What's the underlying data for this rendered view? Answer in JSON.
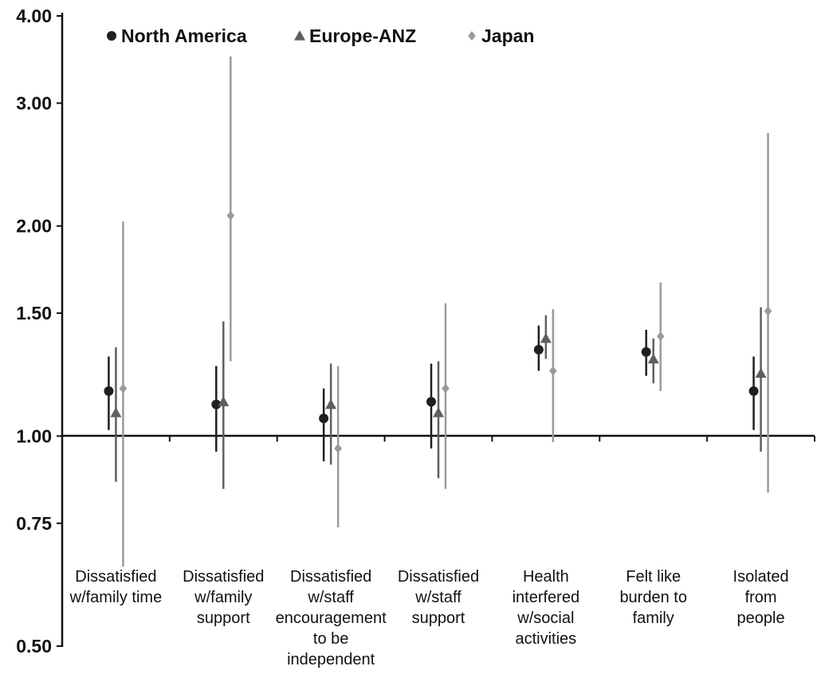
{
  "chart_data": {
    "type": "scatter",
    "subtype": "error-bar plot (log scale)",
    "y_scale": "log",
    "ylim": [
      0.5,
      4.0
    ],
    "y_ticks": [
      "0.50",
      "0.75",
      "1.00",
      "1.50",
      "2.00",
      "3.00",
      "4.00"
    ],
    "reference_line": 1.0,
    "legend_position": "top-left",
    "categories": [
      "Dissatisfied\nw/family time",
      "Dissatisfied\nw/family\nsupport",
      "Dissatisfied\nw/staff\nencouragement\nto be\nindependent",
      "Dissatisfied\nw/staff\nsupport",
      "Health\ninterfered\nw/social\nactivities",
      "Felt like\nburden to\nfamily",
      "Isolated\nfrom\npeople"
    ],
    "series": [
      {
        "name": "North America",
        "marker": "circle",
        "color": "#1f1f1f",
        "values": [
          1.16,
          1.11,
          1.06,
          1.12,
          1.33,
          1.32,
          1.16
        ],
        "lower": [
          1.02,
          0.95,
          0.92,
          0.96,
          1.24,
          1.22,
          1.02
        ],
        "upper": [
          1.3,
          1.26,
          1.17,
          1.27,
          1.44,
          1.42,
          1.3
        ]
      },
      {
        "name": "Europe-ANZ",
        "marker": "triangle",
        "color": "#5f5f5f",
        "values": [
          1.08,
          1.12,
          1.11,
          1.08,
          1.38,
          1.29,
          1.23
        ],
        "lower": [
          0.86,
          0.84,
          0.91,
          0.87,
          1.29,
          1.19,
          0.95
        ],
        "upper": [
          1.34,
          1.46,
          1.27,
          1.28,
          1.49,
          1.38,
          1.53
        ]
      },
      {
        "name": "Japan",
        "marker": "diamond",
        "color": "#9a9a9a",
        "values": [
          1.17,
          2.07,
          0.96,
          1.17,
          1.24,
          1.39,
          1.51
        ],
        "lower": [
          0.65,
          1.28,
          0.74,
          0.84,
          0.98,
          1.16,
          0.83
        ],
        "upper": [
          2.03,
          3.5,
          1.26,
          1.55,
          1.52,
          1.66,
          2.72
        ]
      }
    ]
  }
}
